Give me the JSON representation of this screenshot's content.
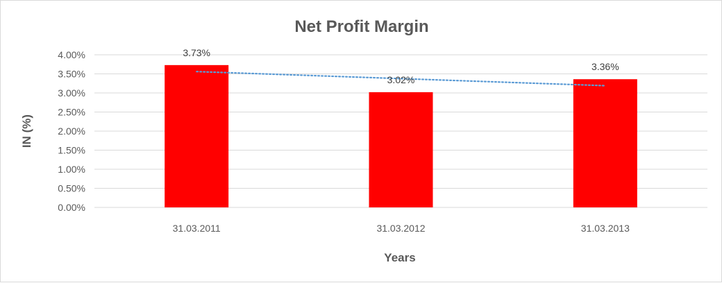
{
  "chart_data": {
    "type": "bar",
    "title": "Net Profit Margin",
    "xlabel": "Years",
    "ylabel": "IN (%)",
    "categories": [
      "31.03.2011",
      "31.03.2012",
      "31.03.2013"
    ],
    "values": [
      3.73,
      3.02,
      3.36
    ],
    "data_labels": [
      "3.73%",
      "3.02%",
      "3.36%"
    ],
    "ylim": [
      0,
      4
    ],
    "y_ticks": [
      0,
      0.5,
      1,
      1.5,
      2,
      2.5,
      3,
      3.5,
      4
    ],
    "y_tick_labels": [
      "0.00%",
      "0.50%",
      "1.00%",
      "1.50%",
      "2.00%",
      "2.50%",
      "3.00%",
      "3.50%",
      "4.00%"
    ],
    "grid": true,
    "legend": "none",
    "bar_color": "#ff0000",
    "trendline": {
      "type": "linear",
      "style": "dotted",
      "color": "#5b9bd5",
      "start_value": 3.56,
      "end_value": 3.19
    }
  }
}
